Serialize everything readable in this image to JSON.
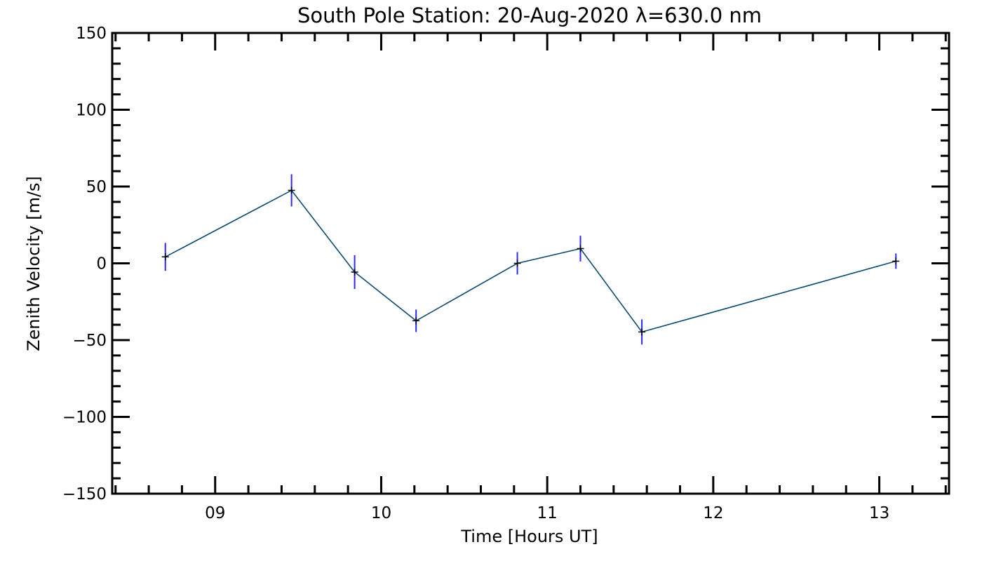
{
  "chart_data": {
    "type": "line",
    "title": "South Pole Station: 20-Aug-2020 λ=630.0 nm",
    "xlabel": "Time [Hours UT]",
    "ylabel": "Zenith Velocity [m/s]",
    "xlim": [
      8.38,
      13.42
    ],
    "ylim": [
      -150,
      150
    ],
    "x_ticks": [
      9,
      10,
      11,
      12,
      13
    ],
    "x_tick_labels": [
      "09",
      "10",
      "11",
      "12",
      "13"
    ],
    "y_ticks": [
      -150,
      -100,
      -50,
      0,
      50,
      100,
      150
    ],
    "y_tick_labels": [
      "−150",
      "−100",
      "−50",
      "0",
      "50",
      "100",
      "150"
    ],
    "x_minor_step": 0.2,
    "y_minor_step": 10,
    "grid": false,
    "series": [
      {
        "name": "zenith velocity",
        "line_color": "#0b4a6e",
        "marker_color": "#000000",
        "errorbar_color": "#2a2aff",
        "x": [
          8.7,
          9.46,
          9.84,
          10.21,
          10.82,
          11.2,
          11.57,
          13.1
        ],
        "y": [
          4.2,
          47.5,
          -5.7,
          -37.4,
          0.0,
          9.6,
          -44.7,
          1.4
        ],
        "err": [
          9.1,
          10.5,
          11.0,
          7.3,
          7.3,
          8.4,
          8.2,
          5.0
        ]
      }
    ]
  }
}
